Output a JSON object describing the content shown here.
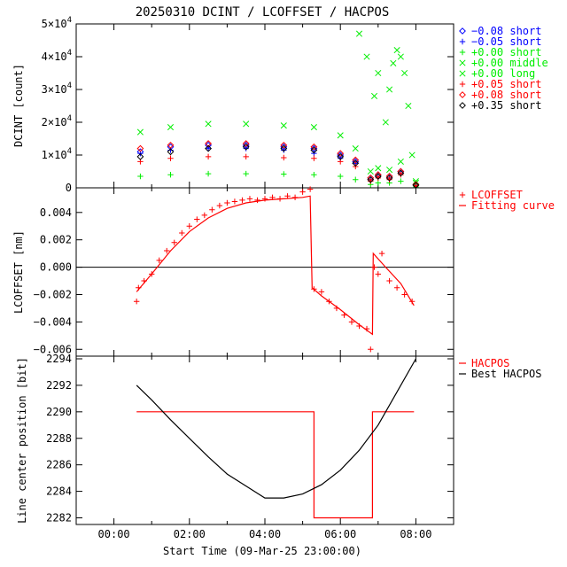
{
  "title": "20250310 DCINT / LCOFFSET / HACPOS",
  "xlabel": "Start Time (09-Mar-25 23:00:00)",
  "chart_data": [
    {
      "type": "scatter",
      "ylabel": "DCINT [count]",
      "xlim": [
        -1.0,
        9.0
      ],
      "ylim": [
        0,
        50000
      ],
      "yticks": [
        {
          "v": 0,
          "base": "0",
          "exp": ""
        },
        {
          "v": 10000,
          "base": "1×10",
          "exp": "4"
        },
        {
          "v": 20000,
          "base": "2×10",
          "exp": "4"
        },
        {
          "v": 30000,
          "base": "3×10",
          "exp": "4"
        },
        {
          "v": 40000,
          "base": "4×10",
          "exp": "4"
        },
        {
          "v": 50000,
          "base": "5×10",
          "exp": "4"
        }
      ],
      "legend_position": "right",
      "series": [
        {
          "name": "−0.08 short",
          "marker": "diamond",
          "color": "#0000ff",
          "x": [
            0.7,
            1.5,
            2.5,
            3.5,
            4.5,
            5.3,
            6.0,
            6.4,
            6.8,
            7.0,
            7.3,
            7.6,
            8.0
          ],
          "y": [
            11000,
            12500,
            13000,
            13000,
            12500,
            12000,
            10000,
            8000,
            3000,
            4000,
            3500,
            5000,
            1000
          ]
        },
        {
          "name": "−0.05 short",
          "marker": "plus",
          "color": "#0000ff",
          "x": [
            0.7,
            1.5,
            2.5,
            3.5,
            4.5,
            5.3,
            6.0,
            6.4,
            6.8,
            7.0,
            7.3,
            7.6,
            8.0
          ],
          "y": [
            10500,
            11500,
            12000,
            12000,
            11500,
            10500,
            9000,
            7500,
            2500,
            3500,
            3000,
            4500,
            800
          ]
        },
        {
          "name": "+0.00 short",
          "marker": "plus",
          "color": "#00ee00",
          "x": [
            0.7,
            1.5,
            2.5,
            3.5,
            4.5,
            5.3,
            6.0,
            6.4,
            6.8,
            7.0,
            7.3,
            7.6,
            8.0
          ],
          "y": [
            3500,
            4000,
            4300,
            4300,
            4200,
            4000,
            3500,
            2500,
            1000,
            1500,
            1500,
            2000,
            300
          ]
        },
        {
          "name": "+0.00 middle",
          "marker": "cross",
          "color": "#00ee00",
          "x": [
            6.5,
            6.7,
            6.9,
            7.0,
            7.2,
            7.3,
            7.4,
            7.5,
            7.6,
            7.7,
            7.8,
            7.9,
            8.0
          ],
          "y": [
            47000,
            40000,
            28000,
            35000,
            20000,
            30000,
            38000,
            42000,
            40000,
            35000,
            25000,
            10000,
            2000
          ]
        },
        {
          "name": "+0.00 long",
          "marker": "cross",
          "color": "#00ee00",
          "x": [
            0.7,
            1.5,
            2.5,
            3.5,
            4.5,
            5.3,
            6.0,
            6.4,
            6.8,
            7.0,
            7.3,
            7.6,
            8.0
          ],
          "y": [
            17000,
            18500,
            19500,
            19500,
            19000,
            18500,
            16000,
            12000,
            5000,
            6000,
            5500,
            8000,
            1500
          ]
        },
        {
          "name": "+0.05 short",
          "marker": "plus",
          "color": "#ff0000",
          "x": [
            0.7,
            1.5,
            2.5,
            3.5,
            4.5,
            5.3,
            6.0,
            6.4,
            6.8,
            7.0,
            7.3,
            7.6,
            8.0
          ],
          "y": [
            8000,
            9000,
            9500,
            9500,
            9200,
            9000,
            8000,
            6500,
            2000,
            3000,
            2500,
            4000,
            700
          ]
        },
        {
          "name": "+0.08 short",
          "marker": "diamond",
          "color": "#ff0000",
          "x": [
            0.7,
            1.5,
            2.5,
            3.5,
            4.5,
            5.3,
            6.0,
            6.4,
            6.8,
            7.0,
            7.3,
            7.6,
            8.0
          ],
          "y": [
            12000,
            13000,
            13500,
            13500,
            13000,
            12500,
            10500,
            8500,
            3000,
            4000,
            3500,
            5000,
            1000
          ]
        },
        {
          "name": "+0.35 short",
          "marker": "diamond",
          "color": "#000000",
          "x": [
            0.7,
            1.5,
            2.5,
            3.5,
            4.5,
            5.3,
            6.0,
            6.4,
            6.8,
            7.0,
            7.3,
            7.6,
            8.0
          ],
          "y": [
            9500,
            11000,
            12000,
            12500,
            12000,
            11500,
            9500,
            7500,
            2500,
            3500,
            3000,
            4500,
            800
          ]
        }
      ]
    },
    {
      "type": "scatter",
      "ylabel": "LCOFFSET [nm]",
      "xlim": [
        -1.0,
        9.0
      ],
      "ylim": [
        -0.0065,
        0.0058
      ],
      "yticks": [
        {
          "v": 0.004,
          "label": "0.004"
        },
        {
          "v": 0.002,
          "label": "0.002"
        },
        {
          "v": 0.0,
          "label": "0.000"
        },
        {
          "v": -0.002,
          "label": "−0.002"
        },
        {
          "v": -0.004,
          "label": "−0.004"
        },
        {
          "v": -0.006,
          "label": "−0.006"
        }
      ],
      "reference_line": 0.0,
      "legend_position": "right",
      "series": [
        {
          "name": "LCOFFSET",
          "marker": "plus",
          "color": "#ff0000",
          "x": [
            0.6,
            0.65,
            0.8,
            1.0,
            1.2,
            1.4,
            1.6,
            1.8,
            2.0,
            2.2,
            2.4,
            2.6,
            2.8,
            3.0,
            3.2,
            3.4,
            3.6,
            3.8,
            4.0,
            4.2,
            4.4,
            4.6,
            4.8,
            5.0,
            5.2,
            5.3,
            5.5,
            5.7,
            5.9,
            6.1,
            6.3,
            6.5,
            6.7,
            6.8,
            6.9,
            7.0,
            7.1,
            7.3,
            7.5,
            7.7,
            7.9
          ],
          "y": [
            -0.0025,
            -0.0015,
            -0.001,
            -0.0005,
            0.0005,
            0.0012,
            0.0018,
            0.0025,
            0.003,
            0.0035,
            0.0038,
            0.0042,
            0.0045,
            0.0047,
            0.0048,
            0.0049,
            0.005,
            0.0049,
            0.005,
            0.0051,
            0.005,
            0.0052,
            0.0051,
            0.0055,
            0.0057,
            -0.0016,
            -0.0018,
            -0.0025,
            -0.003,
            -0.0035,
            -0.004,
            -0.0043,
            -0.0045,
            -0.006,
            0.0,
            -0.0005,
            0.001,
            -0.001,
            -0.0015,
            -0.002,
            -0.0025
          ]
        },
        {
          "name": "Fitting curve",
          "line": true,
          "color": "#ff0000",
          "x": [
            0.6,
            1.0,
            1.5,
            2.0,
            2.5,
            3.0,
            3.5,
            4.0,
            4.5,
            5.0,
            5.2,
            5.25,
            5.5,
            6.0,
            6.5,
            6.85,
            6.87,
            7.2,
            7.6,
            7.95
          ],
          "y": [
            -0.0018,
            -0.0005,
            0.0012,
            0.0026,
            0.0036,
            0.0043,
            0.0047,
            0.0049,
            0.005,
            0.0051,
            0.0052,
            -0.0015,
            -0.0021,
            -0.0031,
            -0.0042,
            -0.0049,
            0.001,
            0.0,
            -0.0012,
            -0.0028
          ]
        }
      ]
    },
    {
      "type": "line",
      "ylabel": "Line center position [bit]",
      "xlim": [
        -1.0,
        9.0
      ],
      "ylim": [
        2281.5,
        2294.2
      ],
      "yticks": [
        {
          "v": 2282,
          "label": "2282"
        },
        {
          "v": 2284,
          "label": "2284"
        },
        {
          "v": 2286,
          "label": "2286"
        },
        {
          "v": 2288,
          "label": "2288"
        },
        {
          "v": 2290,
          "label": "2290"
        },
        {
          "v": 2292,
          "label": "2292"
        },
        {
          "v": 2294,
          "label": "2294"
        }
      ],
      "xticks": [
        {
          "v": 0,
          "label": "00:00"
        },
        {
          "v": 2,
          "label": "02:00"
        },
        {
          "v": 4,
          "label": "04:00"
        },
        {
          "v": 6,
          "label": "06:00"
        },
        {
          "v": 8,
          "label": "08:00"
        }
      ],
      "legend_position": "right",
      "series": [
        {
          "name": "HACPOS",
          "color": "#ff0000",
          "step": true,
          "x": [
            0.6,
            5.3,
            5.3,
            6.85,
            6.85,
            7.95
          ],
          "y": [
            2290,
            2290,
            2282,
            2282,
            2290,
            2290
          ]
        },
        {
          "name": "Best HACPOS",
          "color": "#000000",
          "x": [
            0.6,
            1.0,
            1.5,
            2.0,
            2.5,
            3.0,
            3.5,
            4.0,
            4.5,
            5.0,
            5.5,
            6.0,
            6.5,
            7.0,
            7.5,
            8.0
          ],
          "y": [
            2292.0,
            2290.9,
            2289.4,
            2288.0,
            2286.6,
            2285.3,
            2284.4,
            2283.5,
            2283.5,
            2283.8,
            2284.5,
            2285.6,
            2287.1,
            2289.0,
            2291.5,
            2294.0
          ]
        }
      ]
    }
  ]
}
